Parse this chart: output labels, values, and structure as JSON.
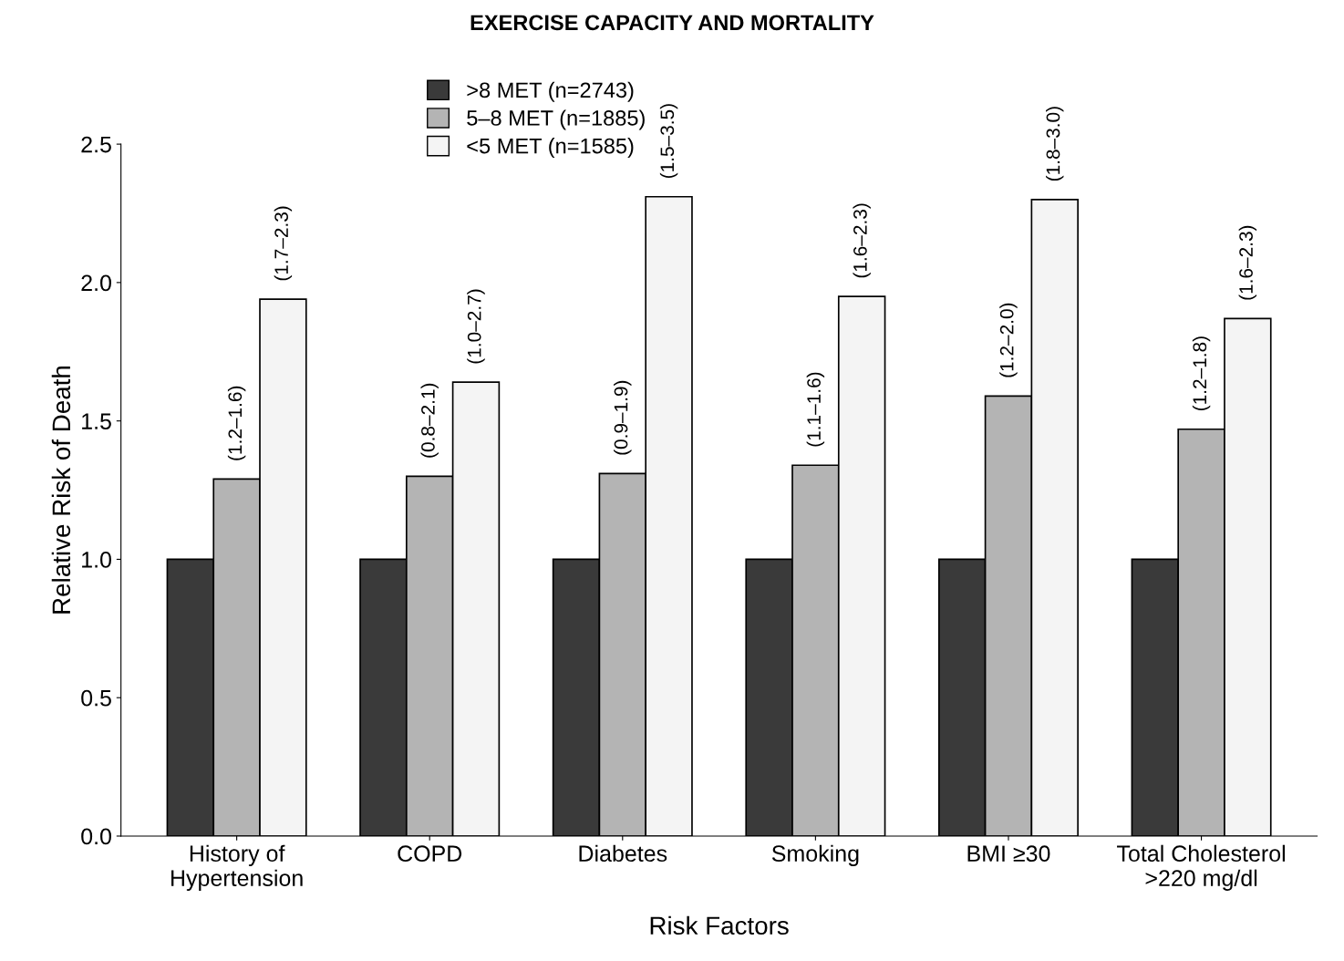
{
  "chart_data": {
    "type": "bar",
    "title": "EXERCISE CAPACITY AND MORTALITY",
    "xlabel": "Risk Factors",
    "ylabel": "Relative Risk of Death",
    "categories": [
      "History of\nHypertension",
      "COPD",
      "Diabetes",
      "Smoking",
      "BMI ≥30",
      "Total Cholesterol\n>220 mg/dl"
    ],
    "series": [
      {
        "name": ">8 MET (n=2743)",
        "color": "#3a3a3a",
        "values": [
          1.0,
          1.0,
          1.0,
          1.0,
          1.0,
          1.0
        ]
      },
      {
        "name": "5–8 MET (n=1885)",
        "color": "#b4b4b4",
        "values": [
          1.29,
          1.3,
          1.31,
          1.34,
          1.59,
          1.47
        ],
        "value_labels": [
          "(1.2–1.6)",
          "(0.8–2.1)",
          "(0.9–1.9)",
          "(1.1–1.6)",
          "(1.2–2.0)",
          "(1.2–1.8)"
        ]
      },
      {
        "name": "<5 MET (n=1585)",
        "color": "#f4f4f4",
        "values": [
          1.94,
          1.64,
          2.31,
          1.95,
          2.3,
          1.87
        ],
        "value_labels": [
          "(1.7–2.3)",
          "(1.0–2.7)",
          "(1.5–3.5)",
          "(1.6–2.3)",
          "(1.8–3.0)",
          "(1.6–2.3)"
        ]
      }
    ],
    "ylim": [
      0,
      2.5
    ],
    "yticks": [
      {
        "value": 0,
        "label": "0.0"
      },
      {
        "value": 0.5,
        "label": "0.5"
      },
      {
        "value": 1,
        "label": "1.0"
      },
      {
        "value": 1.5,
        "label": "1.5"
      },
      {
        "value": 2,
        "label": "2.0"
      },
      {
        "value": 2.5,
        "label": "2.5"
      }
    ],
    "grid": false,
    "legend": "top left"
  }
}
